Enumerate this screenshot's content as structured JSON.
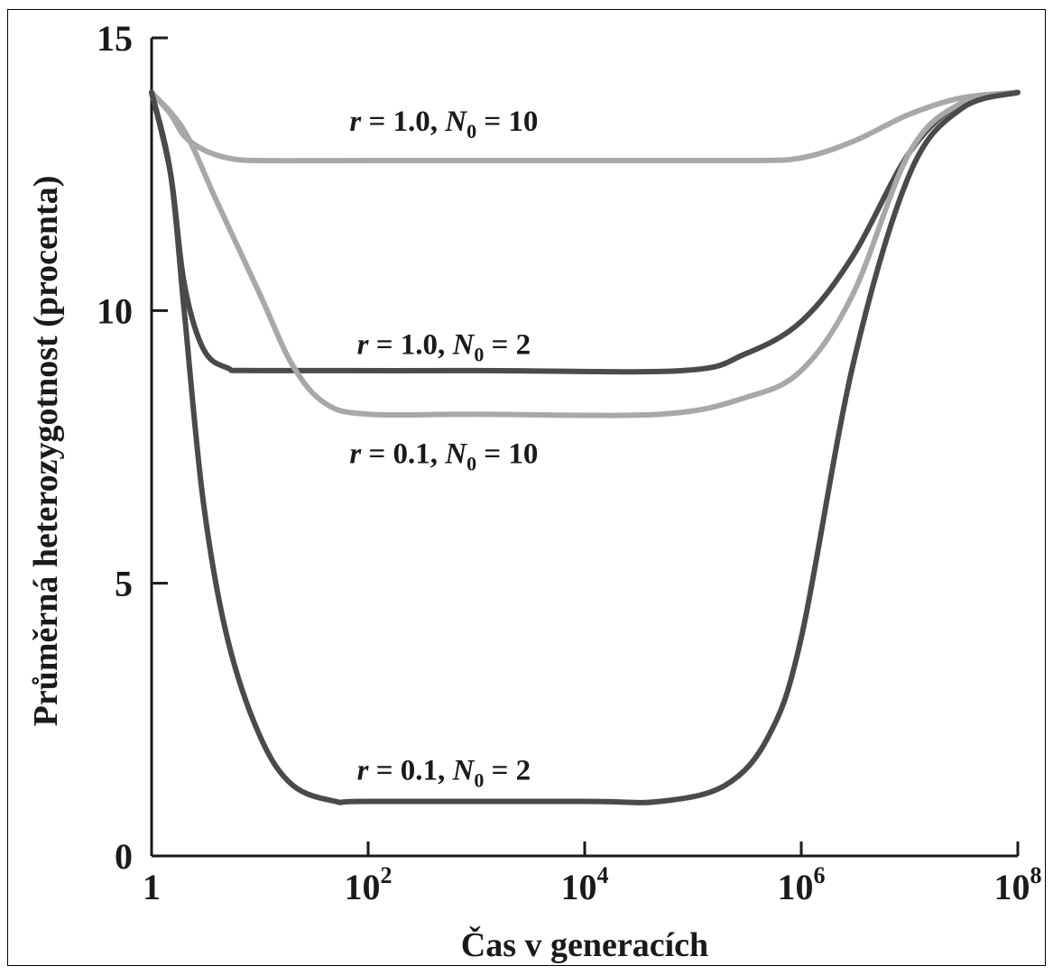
{
  "chart_data": {
    "type": "line",
    "xlabel": "Čas v generacích",
    "ylabel": "Průměrná heterozygotnost (procenta)",
    "x_scale": "log",
    "xlim": [
      1,
      100000000
    ],
    "ylim": [
      0,
      15
    ],
    "y_ticks": [
      {
        "value": 0,
        "label": "0"
      },
      {
        "value": 5,
        "label": "5"
      },
      {
        "value": 10,
        "label": "10"
      },
      {
        "value": 15,
        "label": "15"
      }
    ],
    "x_ticks": [
      {
        "value": 1,
        "base": "1",
        "exp": ""
      },
      {
        "value": 100,
        "base": "10",
        "exp": "2"
      },
      {
        "value": 10000,
        "base": "10",
        "exp": "4"
      },
      {
        "value": 1000000,
        "base": "10",
        "exp": "6"
      },
      {
        "value": 100000000,
        "base": "10",
        "exp": "8"
      }
    ],
    "series": [
      {
        "color": "#a8a8a8",
        "label": {
          "r": "1.0",
          "N": "10",
          "at_x": 500,
          "at_y": 13.3
        },
        "points": [
          [
            1,
            14.0
          ],
          [
            1.5,
            13.6
          ],
          [
            2,
            13.2
          ],
          [
            3,
            12.95
          ],
          [
            5,
            12.8
          ],
          [
            10,
            12.75
          ],
          [
            100,
            12.75
          ],
          [
            10000,
            12.75
          ],
          [
            300000,
            12.75
          ],
          [
            1000000,
            12.8
          ],
          [
            3000000,
            13.1
          ],
          [
            10000000,
            13.6
          ],
          [
            30000000,
            13.9
          ],
          [
            100000000,
            14.0
          ]
        ]
      },
      {
        "color": "#4a4a4a",
        "label": {
          "r": "1.0",
          "N": "2",
          "at_x": 500,
          "at_y": 9.2
        },
        "points": [
          [
            1,
            14.0
          ],
          [
            1.5,
            12.5
          ],
          [
            2,
            10.5
          ],
          [
            3,
            9.3
          ],
          [
            5,
            8.95
          ],
          [
            10,
            8.9
          ],
          [
            1000,
            8.9
          ],
          [
            80000,
            8.9
          ],
          [
            300000,
            9.2
          ],
          [
            1000000,
            9.8
          ],
          [
            3000000,
            11.0
          ],
          [
            10000000,
            12.9
          ],
          [
            30000000,
            13.8
          ],
          [
            100000000,
            14.0
          ]
        ]
      },
      {
        "color": "#a8a8a8",
        "label": {
          "r": "0.1",
          "N": "10",
          "at_x": 500,
          "at_y": 7.2
        },
        "points": [
          [
            1,
            14.0
          ],
          [
            2,
            13.3
          ],
          [
            4,
            12.0
          ],
          [
            10,
            10.3
          ],
          [
            20,
            9.0
          ],
          [
            40,
            8.3
          ],
          [
            100,
            8.1
          ],
          [
            1000,
            8.1
          ],
          [
            50000,
            8.1
          ],
          [
            300000,
            8.4
          ],
          [
            1000000,
            8.9
          ],
          [
            3000000,
            10.3
          ],
          [
            10000000,
            12.9
          ],
          [
            30000000,
            13.8
          ],
          [
            100000000,
            14.0
          ]
        ]
      },
      {
        "color": "#4a4a4a",
        "label": {
          "r": "0.1",
          "N": "2",
          "at_x": 500,
          "at_y": 1.4
        },
        "points": [
          [
            1,
            14.0
          ],
          [
            1.5,
            12.5
          ],
          [
            2,
            10.0
          ],
          [
            3,
            6.5
          ],
          [
            5,
            4.0
          ],
          [
            10,
            2.2
          ],
          [
            20,
            1.3
          ],
          [
            50,
            1.0
          ],
          [
            100,
            1.0
          ],
          [
            10000,
            1.0
          ],
          [
            50000,
            1.0
          ],
          [
            200000,
            1.3
          ],
          [
            500000,
            2.2
          ],
          [
            1000000,
            4.0
          ],
          [
            3000000,
            9.0
          ],
          [
            10000000,
            12.5
          ],
          [
            30000000,
            13.7
          ],
          [
            100000000,
            14.0
          ]
        ]
      }
    ],
    "grid": false
  }
}
